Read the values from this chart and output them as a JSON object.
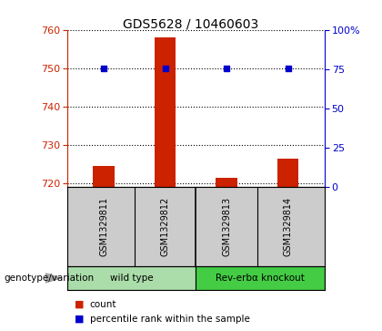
{
  "title": "GDS5628 / 10460603",
  "samples": [
    "GSM1329811",
    "GSM1329812",
    "GSM1329813",
    "GSM1329814"
  ],
  "counts": [
    724.5,
    758.0,
    721.5,
    726.5
  ],
  "percentile_ranks": [
    75.5,
    75.5,
    75.5,
    75.5
  ],
  "ylim_left": [
    719,
    760
  ],
  "ylim_right": [
    0,
    100
  ],
  "yticks_left": [
    720,
    730,
    740,
    750,
    760
  ],
  "yticks_right": [
    0,
    25,
    50,
    75,
    100
  ],
  "ytick_labels_right": [
    "0",
    "25",
    "50",
    "75",
    "100%"
  ],
  "bar_color": "#cc2200",
  "dot_color": "#0000cc",
  "bar_width": 0.35,
  "groups": [
    {
      "label": "wild type",
      "samples": [
        0,
        1
      ],
      "color": "#aaddaa"
    },
    {
      "label": "Rev-erbα knockout",
      "samples": [
        2,
        3
      ],
      "color": "#44cc44"
    }
  ],
  "genotype_label": "genotype/variation",
  "legend_items": [
    {
      "color": "#cc2200",
      "label": "count"
    },
    {
      "color": "#0000cc",
      "label": "percentile rank within the sample"
    }
  ],
  "axis_color_left": "#cc2200",
  "axis_color_right": "#0000cc",
  "background_color": "#ffffff",
  "plot_bg_color": "#ffffff",
  "label_bg_color": "#cccccc"
}
